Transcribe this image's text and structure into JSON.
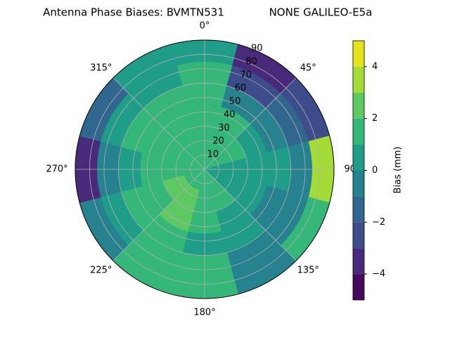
{
  "chart_data": {
    "type": "polar-contour",
    "title": "Antenna Phase Biases: BVMTN531",
    "subtitle": "NONE GALILEO-E5a",
    "colorbar_label": "Bias (mm)",
    "rlim": [
      0,
      90
    ],
    "rticks": [
      10,
      20,
      30,
      40,
      50,
      60,
      70,
      80,
      90
    ],
    "thetaticks": [
      {
        "value": 0,
        "label": "0°"
      },
      {
        "value": 45,
        "label": "45°"
      },
      {
        "value": 90,
        "label": "90°"
      },
      {
        "value": 135,
        "label": "135°"
      },
      {
        "value": 180,
        "label": "180°"
      },
      {
        "value": 225,
        "label": "225°"
      },
      {
        "value": 270,
        "label": "270°"
      },
      {
        "value": 315,
        "label": "315°"
      }
    ],
    "grid": true,
    "r_edges": [
      0,
      15,
      30,
      45,
      60,
      75,
      90
    ],
    "theta": [
      0,
      30,
      60,
      90,
      120,
      150,
      180,
      210,
      240,
      270,
      300,
      330
    ],
    "z": [
      [
        1,
        1,
        1,
        0.5,
        0.5,
        1,
        1,
        1.5,
        1.5,
        1,
        1,
        1
      ],
      [
        1.5,
        1.5,
        1,
        0.5,
        0.5,
        1,
        1.5,
        2.5,
        2.5,
        1.5,
        1.5,
        1.5
      ],
      [
        1.5,
        1,
        0.5,
        0,
        0,
        0.5,
        1,
        2.5,
        1.5,
        1,
        1.5,
        1.5
      ],
      [
        1.5,
        -0.5,
        -0.5,
        0,
        -0.5,
        0,
        0.5,
        1,
        1,
        0.5,
        1,
        1.5
      ],
      [
        1.5,
        -2.5,
        -1.5,
        -0.5,
        -1,
        -0.5,
        1.5,
        1,
        0.5,
        -0.5,
        0.5,
        0.5
      ],
      [
        0.5,
        -3.5,
        -2.5,
        3,
        1.5,
        -1,
        1.5,
        1.5,
        -0.5,
        -3.5,
        -2,
        0.5
      ]
    ],
    "levels": [
      -5,
      -4,
      -3,
      -2,
      -1,
      0,
      1,
      2,
      3,
      4,
      5
    ],
    "colors": [
      "#450a5c",
      "#48297a",
      "#3d4c8a",
      "#31678e",
      "#26828e",
      "#1f9d89",
      "#35b779",
      "#5ec962",
      "#a5db36",
      "#e3e419"
    ],
    "cticks": [
      {
        "value": -4,
        "label": "−4"
      },
      {
        "value": -2,
        "label": "−2"
      },
      0,
      2,
      4
    ]
  }
}
